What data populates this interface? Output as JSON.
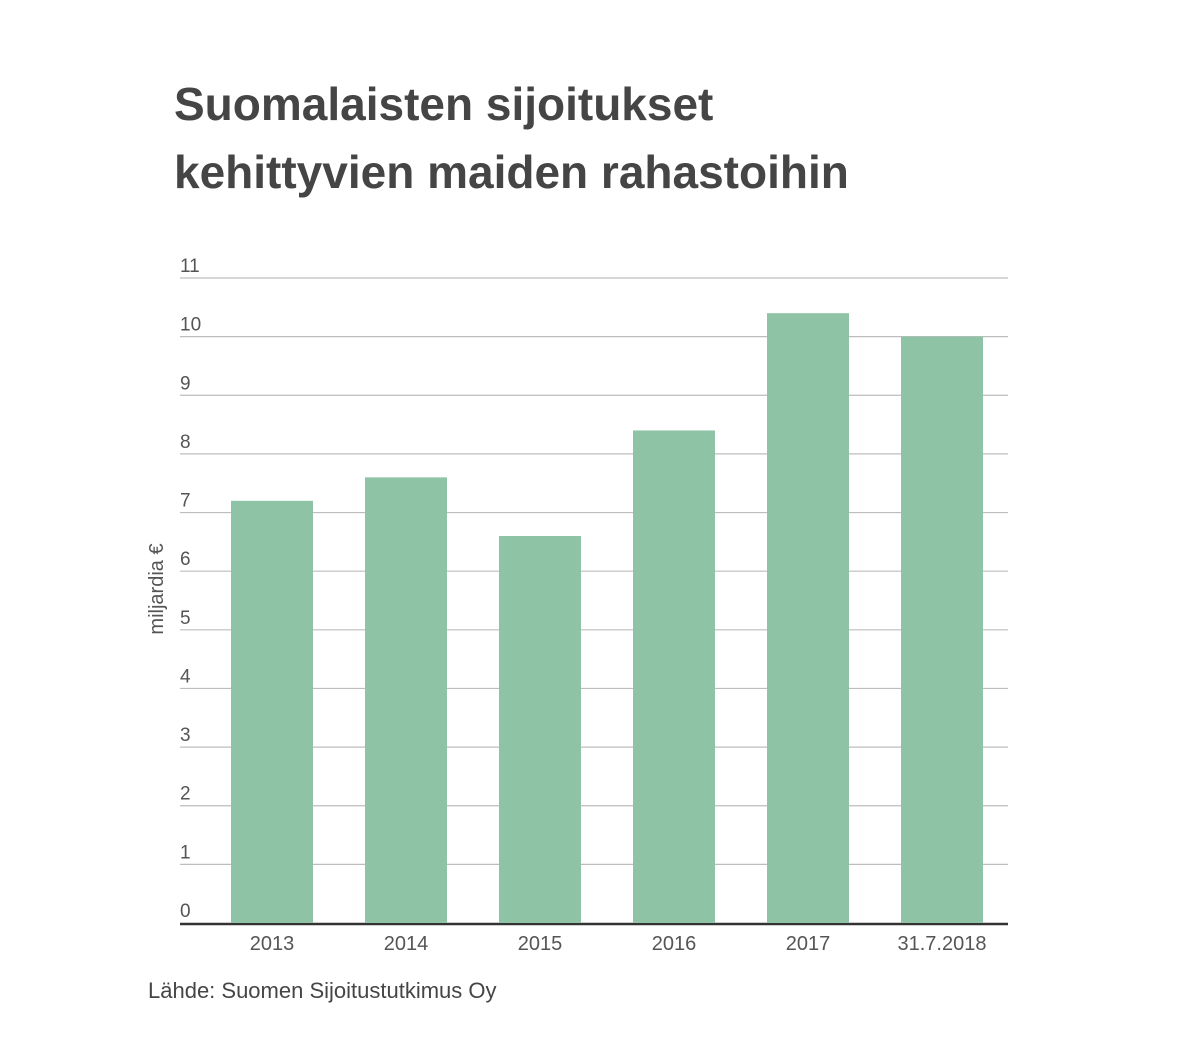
{
  "chart_data": {
    "type": "bar",
    "title_lines": [
      "Suomalaisten sijoitukset",
      "kehittyvien maiden rahastoihin"
    ],
    "categories": [
      "2013",
      "2014",
      "2015",
      "2016",
      "2017",
      "31.7.2018"
    ],
    "values": [
      7.2,
      7.6,
      6.6,
      8.4,
      10.4,
      10.0
    ],
    "ylabel": "miljardia €",
    "xlabel": "",
    "ylim": [
      0,
      11
    ],
    "yticks": [
      "0",
      "1",
      "2",
      "3",
      "4",
      "5",
      "6",
      "7",
      "8",
      "9",
      "10",
      "11"
    ],
    "grid": true,
    "legend": "none",
    "source": "Lähde: Suomen Sijoitustutkimus Oy"
  },
  "colors": {
    "bar": "#8ec3a5",
    "grid": "#bdbdbd",
    "axis": "#333333",
    "text": "#454545"
  }
}
